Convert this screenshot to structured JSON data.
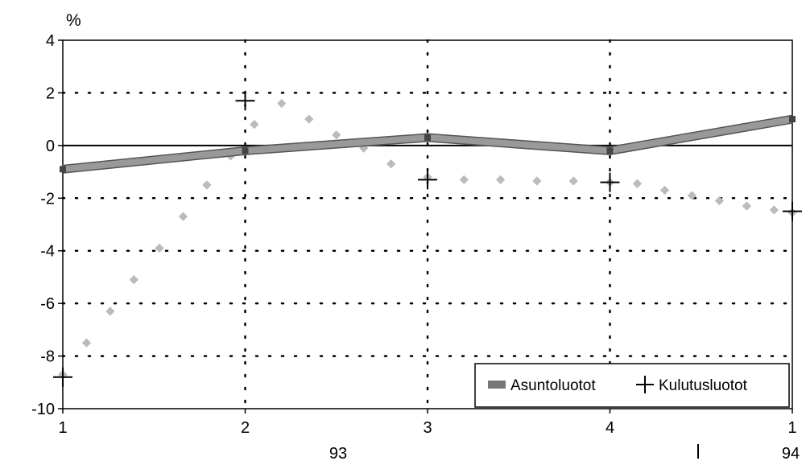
{
  "chart_data": {
    "type": "line",
    "unit_label": "%",
    "ylim": [
      -10,
      4
    ],
    "y_ticks": [
      4,
      2,
      0,
      -2,
      -4,
      -6,
      -8,
      -10
    ],
    "x_tick_labels": [
      "1",
      "2",
      "3",
      "4",
      "1"
    ],
    "x_year_labels": [
      "93",
      "94"
    ],
    "grid": "dotted",
    "legend_position": "bottom-right",
    "series": [
      {
        "name": "Asuntoluotot",
        "color": "#999999",
        "style": "thick-line",
        "x": [
          1,
          2,
          3,
          4,
          5
        ],
        "values": [
          -0.9,
          -0.2,
          0.3,
          -0.2,
          1.0
        ]
      },
      {
        "name": "Kulutusluotot",
        "color": "#000000",
        "style": "plus-markers",
        "x": [
          1,
          2,
          3,
          4,
          5
        ],
        "values": [
          -8.8,
          1.7,
          -1.3,
          -1.4,
          -2.5
        ]
      }
    ],
    "dotted_trend": {
      "color": "#bbbbbb",
      "x": [
        1.0,
        1.13,
        1.26,
        1.39,
        1.53,
        1.66,
        1.79,
        1.92,
        2.05,
        2.2,
        2.35,
        2.5,
        2.65,
        2.8,
        3.0,
        3.2,
        3.4,
        3.6,
        3.8,
        4.0,
        4.15,
        4.3,
        4.45,
        4.6,
        4.75,
        4.9,
        5.0
      ],
      "values": [
        -8.7,
        -7.5,
        -6.3,
        -5.1,
        -3.9,
        -2.7,
        -1.5,
        -0.4,
        0.8,
        1.6,
        1.0,
        0.4,
        -0.1,
        -0.7,
        -1.2,
        -1.3,
        -1.3,
        -1.35,
        -1.35,
        -1.4,
        -1.45,
        -1.7,
        -1.9,
        -2.1,
        -2.3,
        -2.45,
        -2.55
      ]
    }
  }
}
